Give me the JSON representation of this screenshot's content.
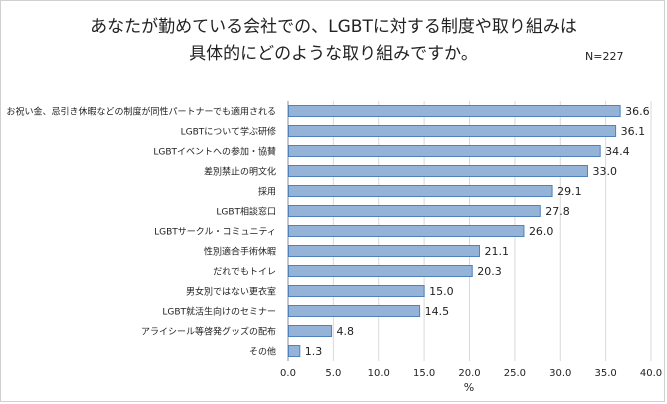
{
  "header": {
    "title_line1": "あなたが勤めている会社での、LGBTに対する制度や取り組みは",
    "title_line2": "具体的にどのような取り組みですか。",
    "sample_size": "N=227"
  },
  "colors": {
    "bar_fill": "#95b3d7",
    "bar_stroke": "#4f81bd",
    "grid": "#d9d9d9",
    "text": "#222222"
  },
  "chart_data": {
    "type": "bar",
    "orientation": "horizontal",
    "title": "あなたが勤めている会社での、LGBTに対する制度や取り組みは具体的にどのような取り組みですか。",
    "xlabel": "%",
    "ylabel": "",
    "xlim": [
      0,
      40
    ],
    "x_ticks": [
      0,
      5,
      10,
      15,
      20,
      25,
      30,
      35,
      40
    ],
    "x_tick_labels": [
      "0.0",
      "5.0",
      "10.0",
      "15.0",
      "20.0",
      "25.0",
      "30.0",
      "35.0",
      "40.0"
    ],
    "grid": true,
    "categories": [
      "お祝い金、忌引き休暇などの制度が同性パートナーでも適用される",
      "LGBTについて学ぶ研修",
      "LGBTイベントへの参加・協賛",
      "差別禁止の明文化",
      "採用",
      "LGBT相談窓口",
      "LGBTサークル・コミュニティ",
      "性別適合手術休暇",
      "だれでもトイレ",
      "男女別ではない更衣室",
      "LGBT就活生向けのセミナー",
      "アライシール等啓発グッズの配布",
      "その他"
    ],
    "values": [
      36.6,
      36.1,
      34.4,
      33.0,
      29.1,
      27.8,
      26.0,
      21.1,
      20.3,
      15.0,
      14.5,
      4.8,
      1.3
    ],
    "value_labels": [
      "36.6",
      "36.1",
      "34.4",
      "33.0",
      "29.1",
      "27.8",
      "26.0",
      "21.1",
      "20.3",
      "15.0",
      "14.5",
      "4.8",
      "1.3"
    ]
  }
}
